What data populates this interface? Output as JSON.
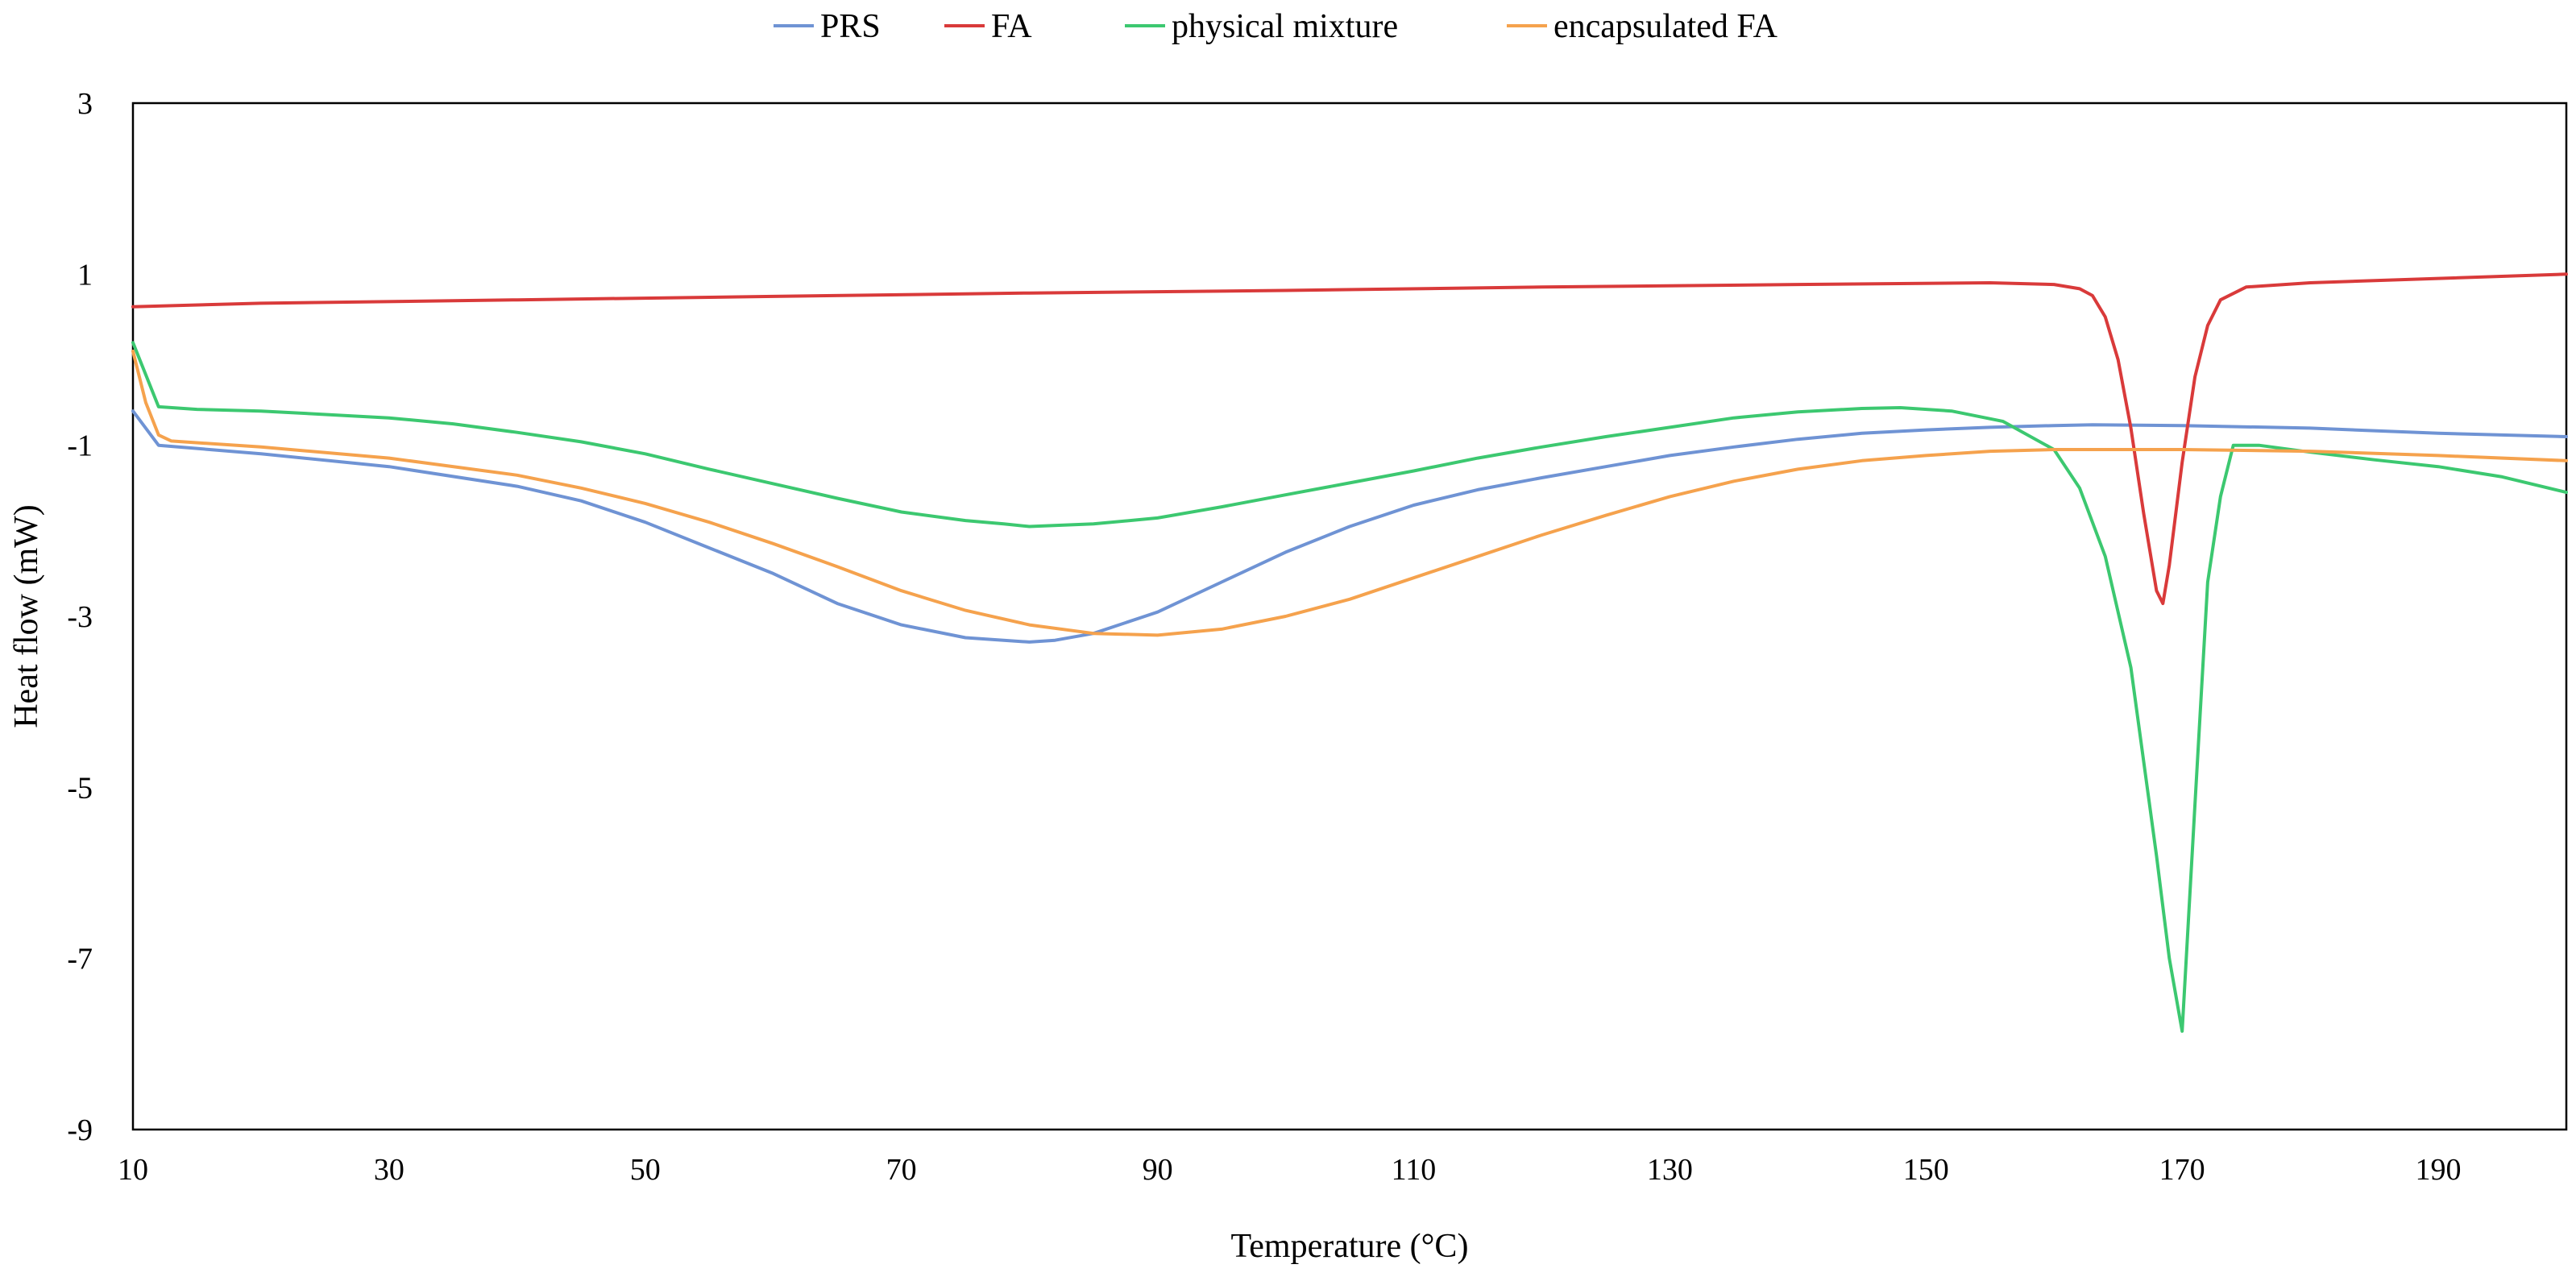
{
  "chart_data": {
    "type": "line",
    "title": "",
    "xlabel": "Temperature (°C)",
    "ylabel": "Heat flow (mW)",
    "xlim": [
      10,
      200
    ],
    "ylim": [
      -9,
      3
    ],
    "xticks": [
      10,
      30,
      50,
      70,
      90,
      110,
      130,
      150,
      170,
      190
    ],
    "yticks": [
      3,
      1,
      -1,
      -3,
      -5,
      -7,
      -9
    ],
    "grid": false,
    "legend_position": "top",
    "series": [
      {
        "name": "PRS",
        "color": "#6f93d4",
        "points": [
          [
            10,
            -0.6
          ],
          [
            12,
            -1.0
          ],
          [
            20,
            -1.1
          ],
          [
            30,
            -1.25
          ],
          [
            40,
            -1.48
          ],
          [
            45,
            -1.65
          ],
          [
            50,
            -1.9
          ],
          [
            55,
            -2.2
          ],
          [
            60,
            -2.5
          ],
          [
            65,
            -2.85
          ],
          [
            70,
            -3.1
          ],
          [
            75,
            -3.25
          ],
          [
            80,
            -3.3
          ],
          [
            82,
            -3.28
          ],
          [
            85,
            -3.2
          ],
          [
            90,
            -2.95
          ],
          [
            95,
            -2.6
          ],
          [
            100,
            -2.25
          ],
          [
            105,
            -1.95
          ],
          [
            110,
            -1.7
          ],
          [
            115,
            -1.52
          ],
          [
            120,
            -1.38
          ],
          [
            125,
            -1.25
          ],
          [
            130,
            -1.12
          ],
          [
            135,
            -1.02
          ],
          [
            140,
            -0.93
          ],
          [
            145,
            -0.86
          ],
          [
            150,
            -0.82
          ],
          [
            155,
            -0.79
          ],
          [
            160,
            -0.77
          ],
          [
            163,
            -0.76
          ],
          [
            170,
            -0.77
          ],
          [
            180,
            -0.8
          ],
          [
            190,
            -0.86
          ],
          [
            200,
            -0.9
          ]
        ]
      },
      {
        "name": "FA",
        "color": "#d93a3a",
        "points": [
          [
            10,
            0.62
          ],
          [
            20,
            0.66
          ],
          [
            40,
            0.7
          ],
          [
            60,
            0.74
          ],
          [
            80,
            0.78
          ],
          [
            100,
            0.81
          ],
          [
            120,
            0.85
          ],
          [
            140,
            0.88
          ],
          [
            155,
            0.9
          ],
          [
            160,
            0.88
          ],
          [
            162,
            0.83
          ],
          [
            163,
            0.75
          ],
          [
            164,
            0.5
          ],
          [
            165,
            0.0
          ],
          [
            166,
            -0.8
          ],
          [
            167,
            -1.8
          ],
          [
            168,
            -2.7
          ],
          [
            168.5,
            -2.85
          ],
          [
            169,
            -2.4
          ],
          [
            170,
            -1.2
          ],
          [
            171,
            -0.2
          ],
          [
            172,
            0.4
          ],
          [
            173,
            0.7
          ],
          [
            175,
            0.85
          ],
          [
            180,
            0.9
          ],
          [
            190,
            0.95
          ],
          [
            200,
            1.0
          ]
        ]
      },
      {
        "name": "physical mixture",
        "color": "#3cc870",
        "points": [
          [
            10,
            0.2
          ],
          [
            12,
            -0.55
          ],
          [
            15,
            -0.58
          ],
          [
            20,
            -0.6
          ],
          [
            30,
            -0.68
          ],
          [
            35,
            -0.75
          ],
          [
            40,
            -0.85
          ],
          [
            45,
            -0.96
          ],
          [
            50,
            -1.1
          ],
          [
            55,
            -1.28
          ],
          [
            60,
            -1.45
          ],
          [
            65,
            -1.62
          ],
          [
            70,
            -1.78
          ],
          [
            75,
            -1.88
          ],
          [
            78,
            -1.92
          ],
          [
            80,
            -1.95
          ],
          [
            85,
            -1.92
          ],
          [
            90,
            -1.85
          ],
          [
            95,
            -1.72
          ],
          [
            100,
            -1.58
          ],
          [
            105,
            -1.44
          ],
          [
            110,
            -1.3
          ],
          [
            115,
            -1.15
          ],
          [
            120,
            -1.02
          ],
          [
            125,
            -0.9
          ],
          [
            130,
            -0.79
          ],
          [
            135,
            -0.68
          ],
          [
            140,
            -0.61
          ],
          [
            145,
            -0.57
          ],
          [
            148,
            -0.56
          ],
          [
            152,
            -0.6
          ],
          [
            156,
            -0.72
          ],
          [
            160,
            -1.05
          ],
          [
            162,
            -1.5
          ],
          [
            164,
            -2.3
          ],
          [
            166,
            -3.6
          ],
          [
            168,
            -5.8
          ],
          [
            169,
            -7.0
          ],
          [
            170,
            -7.85
          ],
          [
            171,
            -5.2
          ],
          [
            172,
            -2.6
          ],
          [
            173,
            -1.6
          ],
          [
            174,
            -1.0
          ],
          [
            176,
            -1.0
          ],
          [
            180,
            -1.08
          ],
          [
            185,
            -1.17
          ],
          [
            190,
            -1.25
          ],
          [
            195,
            -1.37
          ],
          [
            200,
            -1.55
          ]
        ]
      },
      {
        "name": "encapsulated FA",
        "color": "#f5a24d",
        "points": [
          [
            10,
            0.1
          ],
          [
            11,
            -0.5
          ],
          [
            12,
            -0.88
          ],
          [
            13,
            -0.95
          ],
          [
            20,
            -1.02
          ],
          [
            30,
            -1.15
          ],
          [
            40,
            -1.35
          ],
          [
            45,
            -1.5
          ],
          [
            50,
            -1.68
          ],
          [
            55,
            -1.9
          ],
          [
            60,
            -2.15
          ],
          [
            65,
            -2.42
          ],
          [
            70,
            -2.7
          ],
          [
            75,
            -2.93
          ],
          [
            80,
            -3.1
          ],
          [
            85,
            -3.2
          ],
          [
            90,
            -3.22
          ],
          [
            95,
            -3.15
          ],
          [
            100,
            -3.0
          ],
          [
            105,
            -2.8
          ],
          [
            110,
            -2.55
          ],
          [
            115,
            -2.3
          ],
          [
            120,
            -2.05
          ],
          [
            125,
            -1.82
          ],
          [
            130,
            -1.6
          ],
          [
            135,
            -1.42
          ],
          [
            140,
            -1.28
          ],
          [
            145,
            -1.18
          ],
          [
            150,
            -1.12
          ],
          [
            155,
            -1.07
          ],
          [
            160,
            -1.05
          ],
          [
            170,
            -1.05
          ],
          [
            180,
            -1.07
          ],
          [
            190,
            -1.12
          ],
          [
            200,
            -1.18
          ]
        ]
      }
    ]
  }
}
